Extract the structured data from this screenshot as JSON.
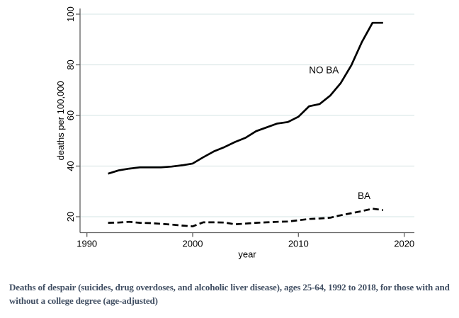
{
  "chart_data": {
    "type": "line",
    "title": "",
    "xlabel": "year",
    "ylabel": "deaths per 100,000",
    "x": [
      1992,
      1993,
      1994,
      1995,
      1996,
      1997,
      1998,
      1999,
      2000,
      2001,
      2002,
      2003,
      2004,
      2005,
      2006,
      2007,
      2008,
      2009,
      2010,
      2011,
      2012,
      2013,
      2014,
      2015,
      2016,
      2017,
      2018
    ],
    "series": [
      {
        "name": "NO BA",
        "style": "solid",
        "values": [
          37,
          38.3,
          39,
          39.5,
          39.5,
          39.5,
          39.8,
          40.3,
          41,
          43.5,
          45.8,
          47.5,
          49.5,
          51.2,
          53.8,
          55.3,
          56.8,
          57.4,
          59.5,
          63.6,
          64.5,
          67.8,
          72.8,
          79.8,
          89,
          96.6,
          96.6
        ],
        "label": {
          "text": "NO BA",
          "x": 2011.0,
          "y": 76.6,
          "anchor": "start"
        }
      },
      {
        "name": "BA",
        "style": "dashed",
        "values": [
          17.6,
          17.7,
          18,
          17.6,
          17.5,
          17.2,
          16.9,
          16.5,
          16.2,
          17.8,
          17.8,
          17.7,
          17,
          17.3,
          17.6,
          17.8,
          18,
          18.1,
          18.6,
          19.1,
          19.3,
          19.6,
          20.6,
          21.4,
          22.2,
          23.2,
          22.6
        ],
        "label": {
          "text": "BA",
          "x": 2015.6,
          "y": 27,
          "anchor": "start"
        }
      }
    ],
    "xticks": [
      1990,
      2000,
      2010,
      2020
    ],
    "yticks": [
      20,
      40,
      60,
      80,
      100
    ],
    "xlim": [
      1989.35,
      2020.96
    ],
    "ylim": [
      13.71,
      101.68
    ],
    "grid": "horizontal",
    "legend": "inline-labels",
    "colors": {
      "line": "#000000",
      "grid": "#dde9e9",
      "axis": "#5f5f5f",
      "tick_text": "#000000"
    }
  },
  "caption": {
    "text": "Deaths of despair (suicides, drug overdoses, and alcoholic liver disease), ages 25-64, 1992 to 2018, for those with and without a college degree (age-adjusted)",
    "color": "#414f63"
  }
}
